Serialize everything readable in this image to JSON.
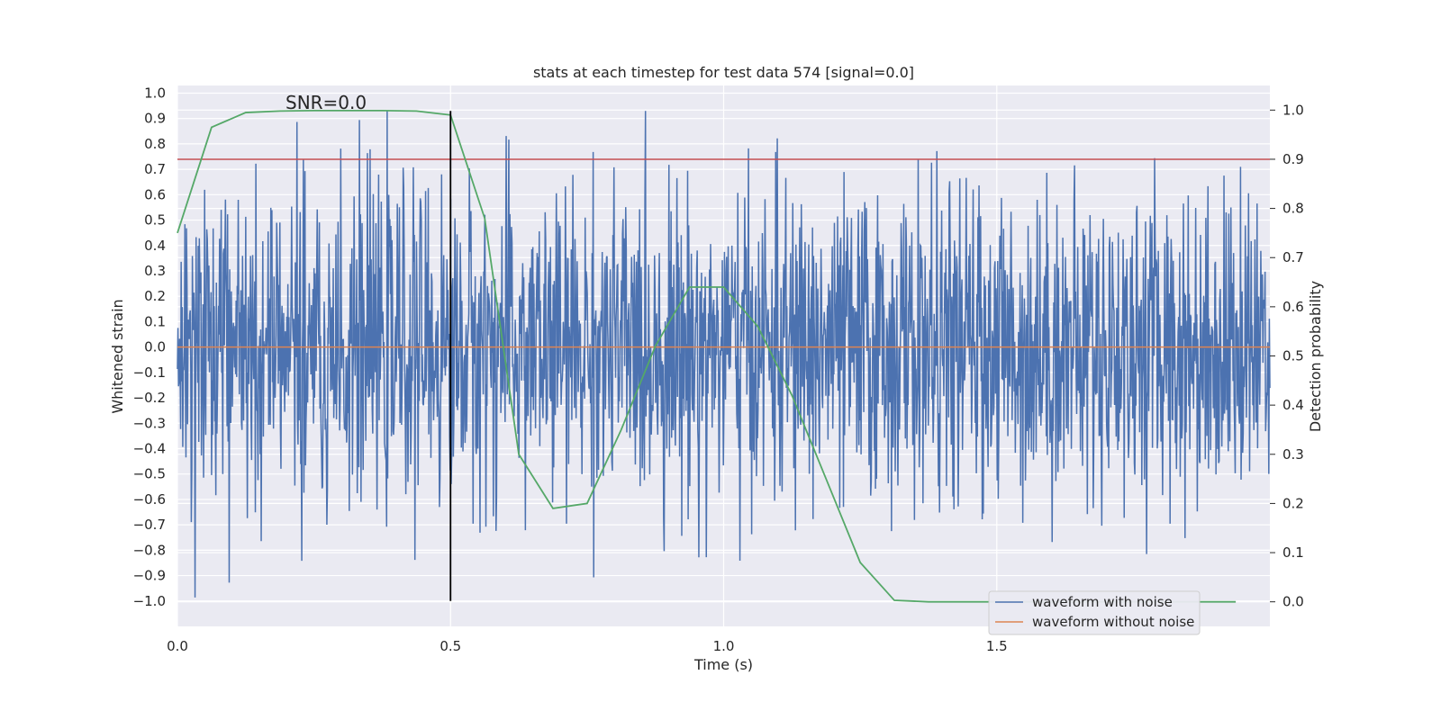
{
  "chart_data": {
    "type": "line",
    "title": "stats at each timestep for test data 574 [signal=0.0]",
    "xlabel": "Time (s)",
    "ylabel": "Whitened strain",
    "y2label": "Detection probability",
    "xlim": [
      0.0,
      2.0
    ],
    "ylim": [
      -1.1,
      1.03
    ],
    "y2lim": [
      -0.05,
      1.05
    ],
    "xticks": [
      0.0,
      0.5,
      1.0,
      1.5
    ],
    "xtick_labels": [
      "0.0",
      "0.5",
      "1.0",
      "1.5"
    ],
    "yticks": [
      -1.0,
      -0.9,
      -0.8,
      -0.7,
      -0.6,
      -0.5,
      -0.4,
      -0.3,
      -0.2,
      -0.1,
      0.0,
      0.1,
      0.2,
      0.3,
      0.4,
      0.5,
      0.6,
      0.7,
      0.8,
      0.9,
      1.0
    ],
    "ytick_labels": [
      "−1.0",
      "−0.9",
      "−0.8",
      "−0.7",
      "−0.6",
      "−0.5",
      "−0.4",
      "−0.3",
      "−0.2",
      "−0.1",
      "0.0",
      "0.1",
      "0.2",
      "0.3",
      "0.4",
      "0.5",
      "0.6",
      "0.7",
      "0.8",
      "0.9",
      "1.0"
    ],
    "y2ticks": [
      0.0,
      0.1,
      0.2,
      0.3,
      0.4,
      0.5,
      0.6,
      0.7,
      0.8,
      0.9,
      1.0
    ],
    "y2tick_labels": [
      "0.0",
      "0.1",
      "0.2",
      "0.3",
      "0.4",
      "0.5",
      "0.6",
      "0.7",
      "0.8",
      "0.9",
      "1.0"
    ],
    "annotation": "SNR=0.0",
    "annotation_at": {
      "x": 0.2,
      "y": 0.94
    },
    "series": [
      {
        "name": "waveform with noise",
        "axis": "left",
        "color": "#4c72b0",
        "sample_count": 2048,
        "t_start": 0.0,
        "t_end": 2.0,
        "y_min": -1.0,
        "y_max": 0.93,
        "noise_std": 0.3
      },
      {
        "name": "waveform without noise",
        "axis": "left",
        "color": "#dd8452",
        "x": [
          0.0,
          2.0
        ],
        "y": [
          0.0,
          0.0
        ]
      },
      {
        "name": "detection probability",
        "axis": "right",
        "color": "#55a868",
        "x": [
          0.0,
          0.0625,
          0.125,
          0.1875,
          0.25,
          0.3125,
          0.375,
          0.4375,
          0.5,
          0.5625,
          0.625,
          0.6875,
          0.75,
          0.8125,
          0.875,
          0.9375,
          1.0,
          1.0625,
          1.125,
          1.1875,
          1.25,
          1.3125,
          1.375,
          1.4375,
          1.5,
          1.5625,
          1.625,
          1.6875,
          1.75,
          1.8125,
          1.875,
          1.9375
        ],
        "y": [
          0.75,
          0.965,
          0.995,
          0.998,
          0.999,
          0.999,
          0.999,
          0.998,
          0.99,
          0.78,
          0.3,
          0.19,
          0.2,
          0.35,
          0.52,
          0.64,
          0.64,
          0.56,
          0.42,
          0.25,
          0.08,
          0.003,
          0.0,
          0.0,
          0.0,
          0.0,
          0.0,
          0.0,
          0.0,
          0.0,
          0.0,
          0.0
        ]
      }
    ],
    "threshold": {
      "axis": "right",
      "value": 0.9,
      "color": "#c44e52"
    },
    "event_marker": {
      "x": 0.5,
      "y_from": -1.0,
      "y_to": 0.93,
      "color": "#000000"
    },
    "legend": {
      "placement": "bottom-right",
      "entries": [
        {
          "label": "waveform with noise",
          "color": "#4c72b0"
        },
        {
          "label": "waveform without noise",
          "color": "#dd8452"
        }
      ]
    },
    "grid": true
  },
  "colors": {
    "plot_background": "#eaeaf2",
    "grid": "#ffffff",
    "text": "#262626"
  }
}
